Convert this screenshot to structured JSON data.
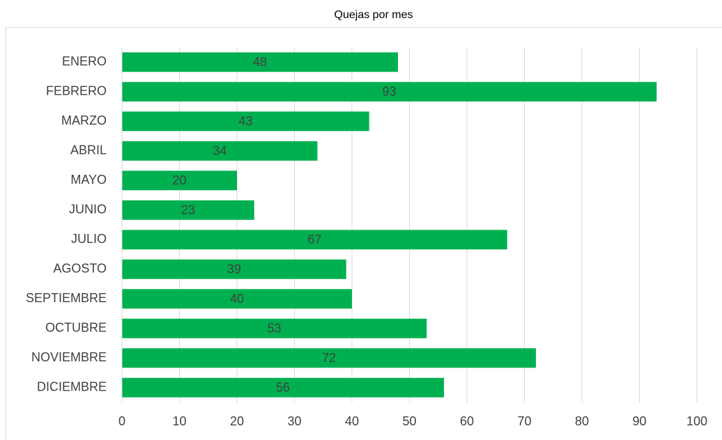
{
  "chart_data": {
    "type": "barh",
    "title": "Quejas por mes",
    "categories": [
      "ENERO",
      "FEBRERO",
      "MARZO",
      "ABRIL",
      "MAYO",
      "JUNIO",
      "JULIO",
      "AGOSTO",
      "SEPTIEMBRE",
      "OCTUBRE",
      "NOVIEMBRE",
      "DICIEMBRE"
    ],
    "values": [
      48,
      93,
      43,
      34,
      20,
      23,
      67,
      39,
      40,
      53,
      72,
      56
    ],
    "color": "#00b050",
    "xlim": [
      0,
      100
    ],
    "xticks": [
      0,
      10,
      20,
      30,
      40,
      50,
      60,
      70,
      80,
      90,
      100
    ],
    "grid": true
  }
}
